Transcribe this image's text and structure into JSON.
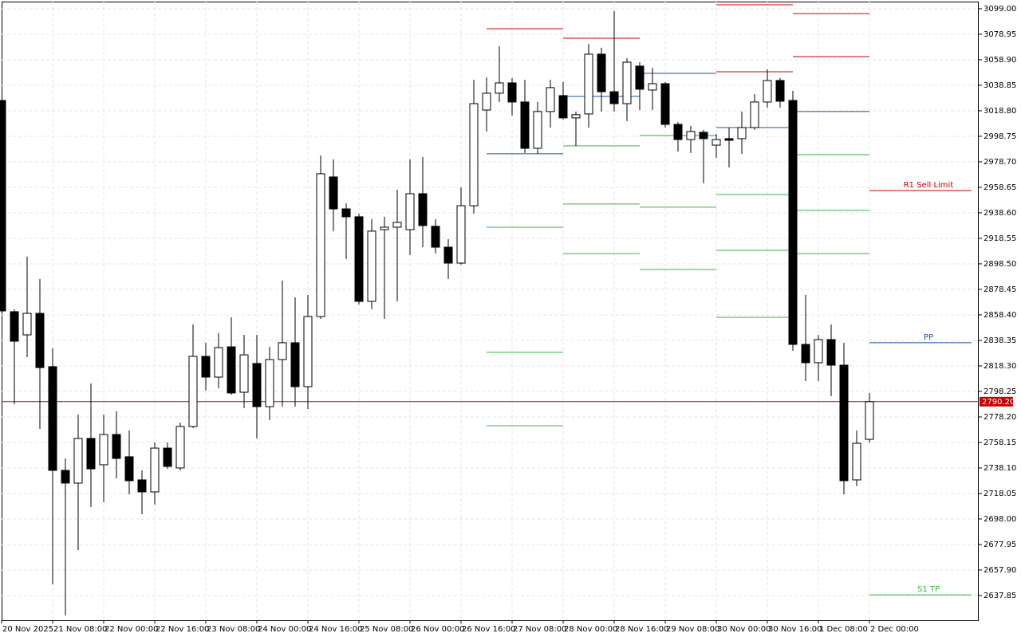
{
  "chart_data": {
    "type": "candlestick",
    "categories": [
      "20 Nov 2025",
      null,
      null,
      null,
      "21 Nov 08:00",
      null,
      null,
      null,
      "22 Nov 00:00",
      null,
      null,
      null,
      "22 Nov 16:00",
      null,
      null,
      null,
      "23 Nov 08:00",
      null,
      null,
      null,
      "24 Nov 00:00",
      null,
      null,
      null,
      "24 Nov 16:00",
      null,
      null,
      null,
      "25 Nov 08:00",
      null,
      null,
      null,
      "26 Nov 00:00",
      null,
      null,
      null,
      "26 Nov 16:00",
      null,
      null,
      null,
      "27 Nov 08:00",
      null,
      null,
      null,
      "28 Nov 00:00",
      null,
      null,
      null,
      "28 Nov 16:00",
      null,
      null,
      null,
      "29 Nov 08:00",
      null,
      null,
      null,
      "30 Nov 00:00",
      null,
      null,
      null,
      "30 Nov 16:00",
      null,
      null,
      null,
      "1 Dec 08:00",
      null,
      null,
      null,
      "2 Dec 00:00"
    ],
    "open": [
      3026.9,
      2860.9,
      2842.7,
      2859.6,
      2817.7,
      2736.2,
      2726.2,
      2761.3,
      2740.6,
      2764.4,
      2746.9,
      2728.7,
      2719.3,
      2753.7,
      2738.1,
      2770.7,
      2825.8,
      2809.5,
      2833.3,
      2797.6,
      2820.2,
      2786.3,
      2823.3,
      2836.5,
      2802.0,
      2857.1,
      2966.8,
      2941.7,
      2935.5,
      2869.0,
      2925.4,
      2927.3,
      2925.4,
      2953.6,
      2928.0,
      2911.6,
      2899.1,
      2944.2,
      3019.4,
      3032.6,
      3040.7,
      3025.7,
      2989.3,
      3018.2,
      3030.7,
      3013.2,
      3016.3,
      3063.3,
      3033.8,
      3024.4,
      3053.9,
      3035.1,
      3040.1,
      3008.1,
      2996.2,
      3001.9,
      2991.8,
      2996.9,
      2996.9,
      3005.6,
      3025.7,
      3042.6,
      3026.9,
      2835.2,
      2820.8,
      2839.0,
      2818.9,
      2728.7,
      2760.6
    ],
    "high": [
      3027,
      2862.8,
      2904.1,
      2886.6,
      2832.1,
      2745.6,
      2780.1,
      2804.5,
      2780.1,
      2782.6,
      2767.5,
      2736.2,
      2758.1,
      2758.1,
      2773.8,
      2850.9,
      2836.5,
      2844.0,
      2856.5,
      2842.7,
      2842.7,
      2833.3,
      2885.3,
      2872.2,
      2874.0,
      2983.7,
      2980.6,
      2946.1,
      2937.9,
      2933.6,
      2935.5,
      2956.8,
      2980.6,
      2982.4,
      2933.6,
      2917.9,
      2958.6,
      3043.2,
      3045.1,
      3069.5,
      3044.5,
      3043.2,
      3025.7,
      3043.2,
      3041.4,
      3018.2,
      3071.4,
      3068.3,
      3097.1,
      3060.1,
      3057.0,
      3052.6,
      3041.4,
      3010.0,
      3006.9,
      3003.8,
      3000.6,
      3005.6,
      3018.2,
      3032.0,
      3051.4,
      3044.5,
      3034.5,
      2874.0,
      2842.7,
      2850.9,
      2836.5,
      2767.5,
      2797.0
    ],
    "low": [
      2861.5,
      2788.2,
      2825.2,
      2768.8,
      2646.6,
      2622.2,
      2673.5,
      2707.4,
      2711.1,
      2729.9,
      2717.4,
      2701.7,
      2709.3,
      2737.4,
      2736.2,
      2769.4,
      2798.9,
      2800.7,
      2795.7,
      2785.1,
      2761.3,
      2775.7,
      2786.3,
      2786.3,
      2784.4,
      2855.3,
      2924.2,
      2902.2,
      2866.5,
      2862.8,
      2855.3,
      2869.0,
      2905.4,
      2911.6,
      2906.6,
      2886.6,
      2897.9,
      2937.9,
      3002.5,
      3025.7,
      3015.0,
      2985.6,
      2984.9,
      3005.6,
      3011.9,
      2991.2,
      3005.6,
      3018.2,
      3018.2,
      3010.6,
      3019.4,
      3019.4,
      3005.6,
      2986.8,
      2985.6,
      2961.8,
      2981.8,
      2974.3,
      2984.9,
      3003.8,
      3021.3,
      3021.3,
      2830.2,
      2806.4,
      2806.4,
      2794.5,
      2717.4,
      2723.7,
      2758.1
    ],
    "close": [
      2861.5,
      2837.7,
      2859.6,
      2817.0,
      2736.2,
      2726.2,
      2761.3,
      2737.4,
      2764.4,
      2745.6,
      2728.1,
      2719.3,
      2753.7,
      2739.3,
      2770.7,
      2825.8,
      2809.5,
      2832.7,
      2797.0,
      2827.0,
      2786.3,
      2823.3,
      2836.5,
      2802.0,
      2857.1,
      2969.3,
      2941.7,
      2935.5,
      2869.0,
      2924.2,
      2927.3,
      2931.1,
      2953.6,
      2928.6,
      2911.6,
      2899.1,
      2944.2,
      3024.4,
      3032.6,
      3040.7,
      3025.7,
      2989.3,
      3018.2,
      3037.0,
      3013.2,
      3015.7,
      3063.3,
      3033.8,
      3024.4,
      3057.0,
      3035.7,
      3040.1,
      3008.1,
      2996.2,
      3002.5,
      2996.9,
      2996.2,
      2995.6,
      3005.6,
      3025.7,
      3042.6,
      3026.3,
      2835.2,
      2820.8,
      2839.0,
      2818.9,
      2728.1,
      2757.5,
      2790.2
    ],
    "up_color": "#ffffff",
    "down_color": "#000000",
    "ylim": [
      2618.4,
      3104.6
    ],
    "yticks": [
      {
        "value": 3099,
        "label": "3099.00"
      },
      3078.95,
      {
        "value": 3058.9,
        "label": "3058.90"
      },
      3038.85,
      {
        "value": 3018.8,
        "label": "3018.80"
      },
      2998.75,
      {
        "value": 2978.7,
        "label": "2978.70"
      },
      2958.65,
      {
        "value": 2938.6,
        "label": "2938.60"
      },
      2918.55,
      {
        "value": 2898.5,
        "label": "2898.50"
      },
      2878.45,
      {
        "value": 2858.4,
        "label": "2858.40"
      },
      2838.35,
      {
        "value": 2818.3,
        "label": "2818.30"
      },
      2798.25,
      {
        "value": 2778.2,
        "label": "2778.20"
      },
      2758.15,
      {
        "value": 2738.1,
        "label": "2738.10"
      },
      2718.05,
      {
        "value": 2698,
        "label": "2698.00"
      },
      2677.95,
      {
        "value": 2657.9,
        "label": "2657.90"
      },
      2637.85
    ],
    "grid": true,
    "last_price": {
      "value": 2790.2,
      "label": "2790.20",
      "color": "#c80000"
    },
    "levels": [
      {
        "from": 38,
        "to": 44,
        "value": 3083.3,
        "color": "#c80000"
      },
      {
        "from": 38,
        "to": 44,
        "value": 2985.0,
        "color": "#1e4fa0"
      },
      {
        "from": 38,
        "to": 44,
        "value": 2927.3,
        "color": "#3cb043"
      },
      {
        "from": 38,
        "to": 44,
        "value": 2829.0,
        "color": "#3cb043"
      },
      {
        "from": 38,
        "to": 44,
        "value": 2771.3,
        "color": "#3cb043"
      },
      {
        "from": 44,
        "to": 50,
        "value": 3075.8,
        "color": "#c80000"
      },
      {
        "from": 44,
        "to": 50,
        "value": 3030.1,
        "color": "#1e4fa0"
      },
      {
        "from": 44,
        "to": 50,
        "value": 2991.2,
        "color": "#3cb043"
      },
      {
        "from": 44,
        "to": 50,
        "value": 2945.5,
        "color": "#3cb043"
      },
      {
        "from": 44,
        "to": 50,
        "value": 2906.6,
        "color": "#3cb043"
      },
      {
        "from": 50,
        "to": 56,
        "value": 3048.2,
        "color": "#1e4fa0"
      },
      {
        "from": 50,
        "to": 56,
        "value": 2999.4,
        "color": "#3cb043"
      },
      {
        "from": 50,
        "to": 56,
        "value": 2943.0,
        "color": "#3cb043"
      },
      {
        "from": 50,
        "to": 56,
        "value": 2894.1,
        "color": "#3cb043"
      },
      {
        "from": 56,
        "to": 62,
        "value": 3102.1,
        "color": "#c80000"
      },
      {
        "from": 56,
        "to": 62,
        "value": 3049.5,
        "color": "#c80000"
      },
      {
        "from": 56,
        "to": 62,
        "value": 3005.6,
        "color": "#1e4fa0"
      },
      {
        "from": 56,
        "to": 62,
        "value": 2953.0,
        "color": "#3cb043"
      },
      {
        "from": 56,
        "to": 62,
        "value": 2909.1,
        "color": "#3cb043"
      },
      {
        "from": 56,
        "to": 62,
        "value": 2856.5,
        "color": "#3cb043"
      },
      {
        "from": 62,
        "to": 68,
        "value": 3095.2,
        "color": "#c80000"
      },
      {
        "from": 62,
        "to": 68,
        "value": 3061.4,
        "color": "#c80000"
      },
      {
        "from": 62,
        "to": 68,
        "value": 3018.2,
        "color": "#1e4fa0"
      },
      {
        "from": 62,
        "to": 68,
        "value": 2984.3,
        "color": "#3cb043"
      },
      {
        "from": 62,
        "to": 68,
        "value": 2940.5,
        "color": "#3cb043"
      },
      {
        "from": 62,
        "to": 68,
        "value": 2906.6,
        "color": "#3cb043"
      },
      {
        "from": 68,
        "to": 76,
        "value": 2956.1,
        "color": "#c80000",
        "label": "R1 Sell Limit"
      },
      {
        "from": 68,
        "to": 76,
        "value": 2836.5,
        "color": "#1e4fa0",
        "label": "PP"
      },
      {
        "from": 68,
        "to": 76,
        "value": 2638.4,
        "color": "#3cb043",
        "label": "S1 TP"
      }
    ]
  }
}
